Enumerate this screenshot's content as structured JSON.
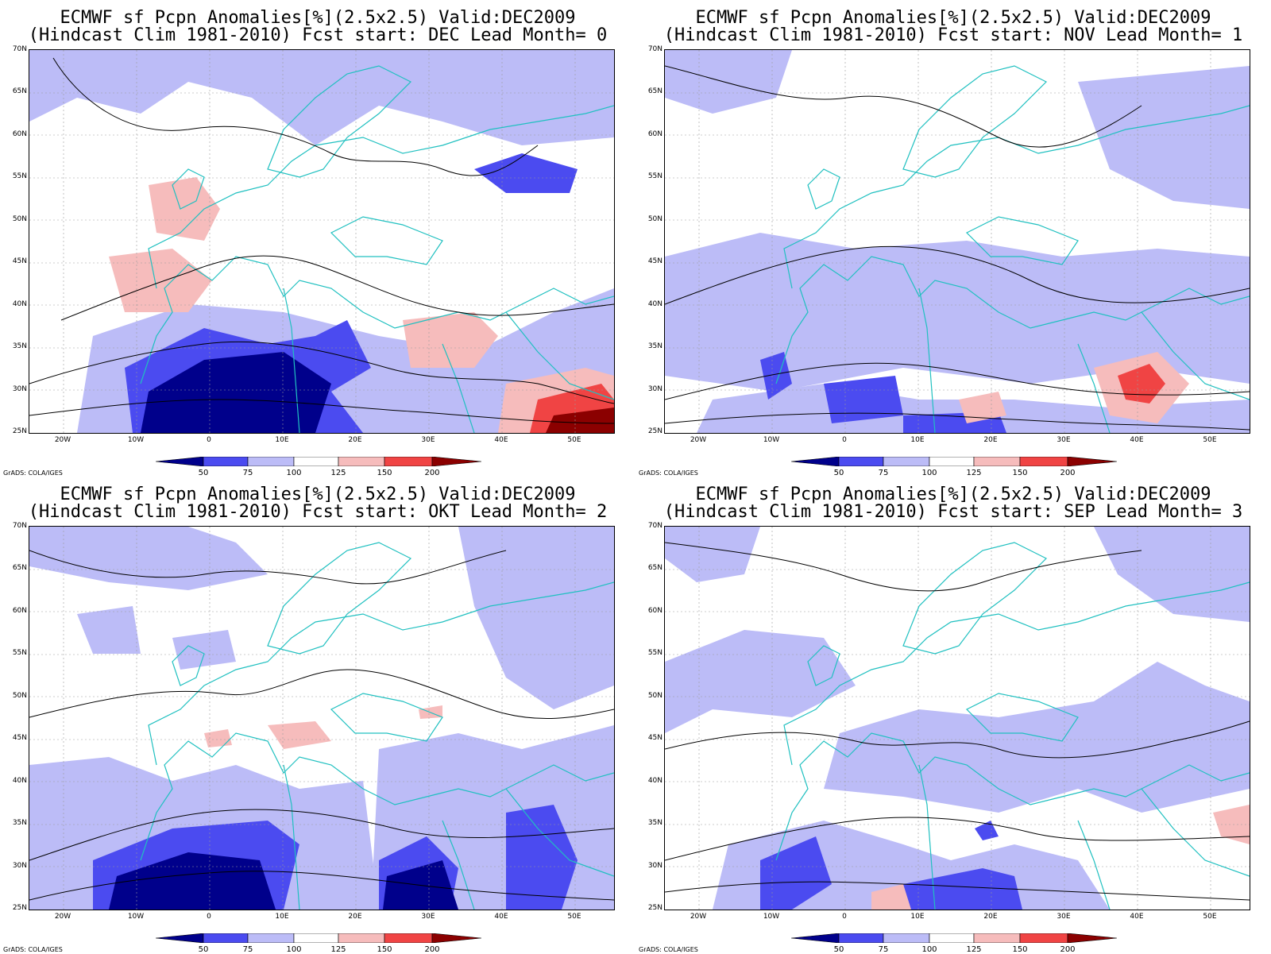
{
  "panels": [
    {
      "title1": "ECMWF sf Pcpn Anomalies[%](2.5x2.5) Valid:DEC2009",
      "title2": "(Hindcast Clim 1981-2010) Fcst start: DEC  Lead Month= 0"
    },
    {
      "title1": "ECMWF sf Pcpn Anomalies[%](2.5x2.5) Valid:DEC2009",
      "title2": "(Hindcast Clim 1981-2010) Fcst start: NOV  Lead Month= 1"
    },
    {
      "title1": "ECMWF sf Pcpn Anomalies[%](2.5x2.5) Valid:DEC2009",
      "title2": "(Hindcast Clim 1981-2010) Fcst start: OKT  Lead Month= 2"
    },
    {
      "title1": "ECMWF sf Pcpn Anomalies[%](2.5x2.5) Valid:DEC2009",
      "title2": "(Hindcast Clim 1981-2010) Fcst start: SEP  Lead Month= 3"
    }
  ],
  "lat_labels": [
    "70N",
    "65N",
    "60N",
    "55N",
    "50N",
    "45N",
    "40N",
    "35N",
    "30N",
    "25N"
  ],
  "lon_labels": [
    "20W",
    "10W",
    "0",
    "10E",
    "20E",
    "30E",
    "40E",
    "50E"
  ],
  "legend": {
    "labels": [
      "50",
      "75",
      "100",
      "125",
      "150",
      "200"
    ],
    "colors": [
      "#00008b",
      "#4b4bf0",
      "#bcbcf7",
      "#ffffff",
      "#f6bcbc",
      "#f04444",
      "#8b0000"
    ]
  },
  "credit": "GrADS: COLA/IGES",
  "colors": {
    "coast": "#20c0c0",
    "contour": "#000000",
    "grid": "#9a9a9a"
  }
}
